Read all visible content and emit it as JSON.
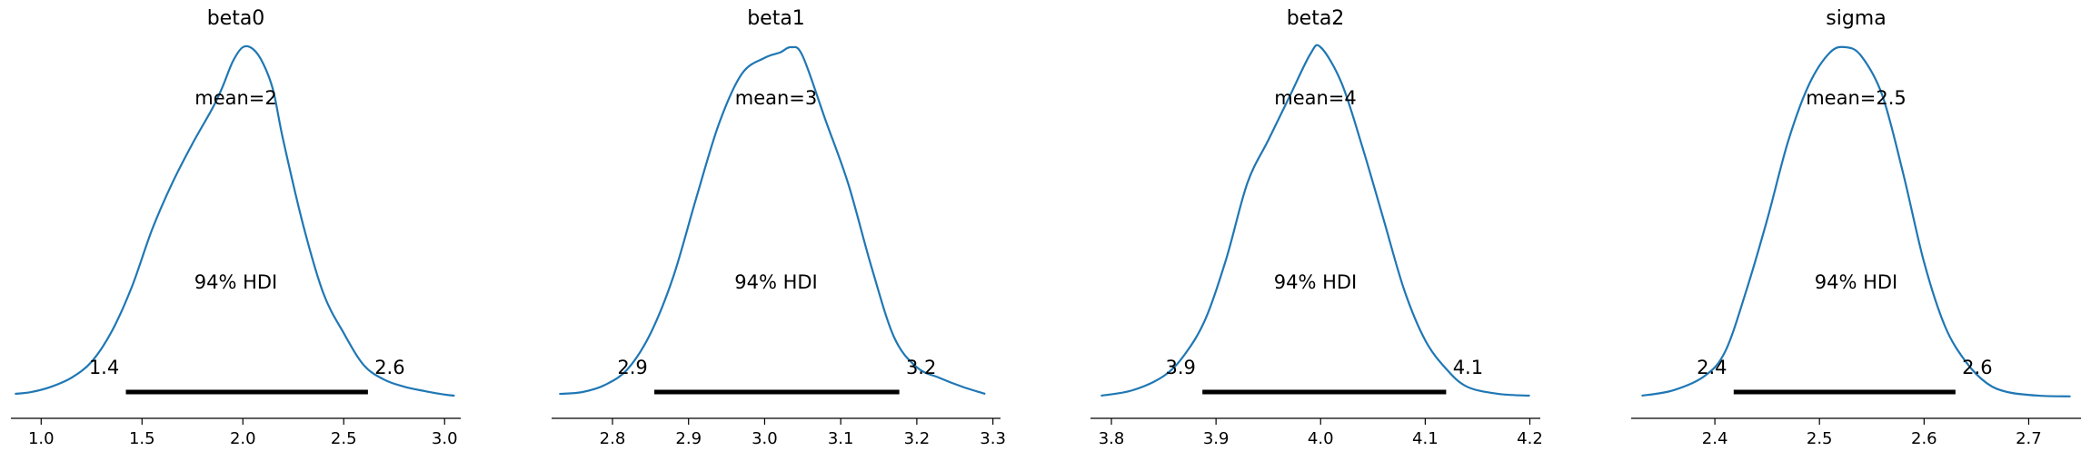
{
  "chart_data": [
    {
      "type": "area",
      "title": "beta0",
      "mean_label": "mean=2",
      "hdi_label": "94% HDI",
      "hdi": [
        1.42,
        2.62
      ],
      "hdi_low_label": "1.4",
      "hdi_high_label": "2.6",
      "xlim": [
        0.85,
        3.08
      ],
      "ticks": [
        1.0,
        1.5,
        2.0,
        2.5,
        3.0
      ],
      "tick_labels": [
        "1.0",
        "1.5",
        "2.0",
        "2.5",
        "3.0"
      ],
      "color": "#1f77b4",
      "density": {
        "x": [
          0.87,
          0.95,
          1.05,
          1.15,
          1.25,
          1.35,
          1.45,
          1.55,
          1.65,
          1.75,
          1.85,
          1.9,
          1.95,
          2.0,
          2.05,
          2.1,
          2.15,
          2.2,
          2.3,
          2.4,
          2.5,
          2.6,
          2.7,
          2.8,
          2.9,
          3.0,
          3.05
        ],
        "y": [
          0.01,
          0.015,
          0.03,
          0.055,
          0.1,
          0.185,
          0.31,
          0.47,
          0.6,
          0.71,
          0.81,
          0.87,
          0.94,
          0.98,
          0.975,
          0.935,
          0.86,
          0.72,
          0.48,
          0.29,
          0.18,
          0.09,
          0.05,
          0.03,
          0.018,
          0.008,
          0.005
        ]
      }
    },
    {
      "type": "area",
      "title": "beta1",
      "mean_label": "mean=3",
      "hdi_label": "94% HDI",
      "hdi": [
        2.855,
        3.177
      ],
      "hdi_low_label": "2.9",
      "hdi_high_label": "3.2",
      "xlim": [
        2.72,
        3.31
      ],
      "ticks": [
        2.8,
        2.9,
        3.0,
        3.1,
        3.2,
        3.3
      ],
      "tick_labels": [
        "2.8",
        "2.9",
        "3.0",
        "3.1",
        "3.2",
        "3.3"
      ],
      "color": "#1f77b4",
      "density": {
        "x": [
          2.73,
          2.76,
          2.79,
          2.82,
          2.85,
          2.88,
          2.91,
          2.94,
          2.97,
          3.0,
          3.02,
          3.035,
          3.05,
          3.08,
          3.11,
          3.14,
          3.17,
          3.2,
          3.23,
          3.26,
          3.29
        ],
        "y": [
          0.01,
          0.015,
          0.035,
          0.08,
          0.18,
          0.34,
          0.56,
          0.77,
          0.91,
          0.955,
          0.97,
          0.985,
          0.96,
          0.78,
          0.6,
          0.37,
          0.17,
          0.085,
          0.055,
          0.03,
          0.01
        ]
      }
    },
    {
      "type": "area",
      "title": "beta2",
      "mean_label": "mean=4",
      "hdi_label": "94% HDI",
      "hdi": [
        3.887,
        4.12
      ],
      "hdi_low_label": "3.9",
      "hdi_high_label": "4.1",
      "xlim": [
        3.78,
        4.21
      ],
      "ticks": [
        3.8,
        3.9,
        4.0,
        4.1,
        4.2
      ],
      "tick_labels": [
        "3.8",
        "3.9",
        "4.0",
        "4.1",
        "4.2"
      ],
      "color": "#1f77b4",
      "density": {
        "x": [
          3.79,
          3.82,
          3.85,
          3.87,
          3.89,
          3.91,
          3.93,
          3.95,
          3.97,
          3.99,
          4.0,
          4.02,
          4.04,
          4.06,
          4.08,
          4.1,
          4.12,
          4.14,
          4.17,
          4.2
        ],
        "y": [
          0.005,
          0.02,
          0.06,
          0.12,
          0.22,
          0.39,
          0.6,
          0.72,
          0.84,
          0.96,
          0.98,
          0.88,
          0.7,
          0.5,
          0.3,
          0.16,
          0.08,
          0.03,
          0.01,
          0.005
        ]
      }
    },
    {
      "type": "area",
      "title": "sigma",
      "mean_label": "mean=2.5",
      "hdi_label": "94% HDI",
      "hdi": [
        2.418,
        2.63
      ],
      "hdi_low_label": "2.4",
      "hdi_high_label": "2.6",
      "xlim": [
        2.32,
        2.75
      ],
      "ticks": [
        2.4,
        2.5,
        2.6,
        2.7
      ],
      "tick_labels": [
        "2.4",
        "2.5",
        "2.6",
        "2.7"
      ],
      "color": "#1f77b4",
      "density": {
        "x": [
          2.33,
          2.36,
          2.39,
          2.41,
          2.43,
          2.45,
          2.47,
          2.49,
          2.51,
          2.525,
          2.54,
          2.56,
          2.58,
          2.6,
          2.62,
          2.64,
          2.66,
          2.68,
          2.71,
          2.74
        ],
        "y": [
          0.005,
          0.02,
          0.06,
          0.13,
          0.3,
          0.5,
          0.72,
          0.88,
          0.97,
          0.985,
          0.96,
          0.85,
          0.63,
          0.38,
          0.2,
          0.1,
          0.04,
          0.015,
          0.005,
          0.003
        ]
      }
    }
  ]
}
